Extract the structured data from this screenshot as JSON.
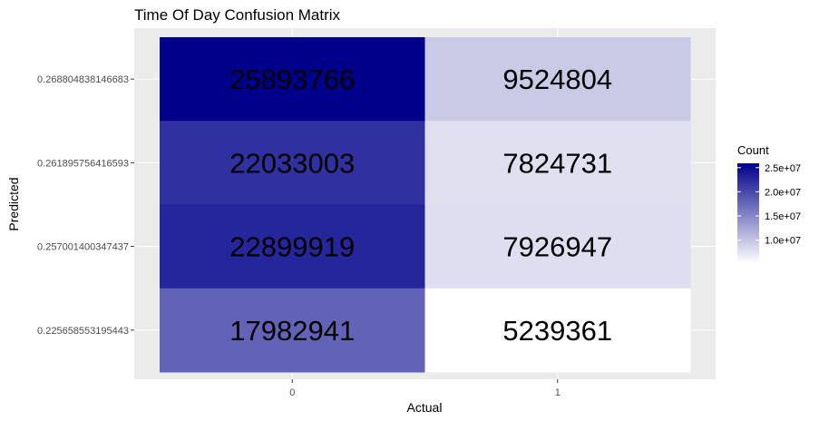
{
  "chart_data": {
    "type": "heatmap",
    "title": "Time Of Day Confusion Matrix",
    "xlabel": "Actual",
    "ylabel": "Predicted",
    "x_categories": [
      "0",
      "1"
    ],
    "y_categories": [
      "0.268804838146683",
      "0.261895756416593",
      "0.257001400347437",
      "0.225658553195443"
    ],
    "values": [
      [
        25893766,
        9524804
      ],
      [
        22033003,
        7824731
      ],
      [
        22899919,
        7926947
      ],
      [
        17982941,
        5239361
      ]
    ],
    "legend": {
      "title": "Count",
      "breaks": [
        10000000,
        15000000,
        20000000,
        25000000
      ],
      "break_labels": [
        "1.0e+07",
        "1.5e+07",
        "2.0e+07",
        "2.5e+07"
      ],
      "low_color": "#ffffff",
      "high_color": "#00008b",
      "placement": "right"
    },
    "panel_background": "#ebebeb",
    "grid": true
  }
}
